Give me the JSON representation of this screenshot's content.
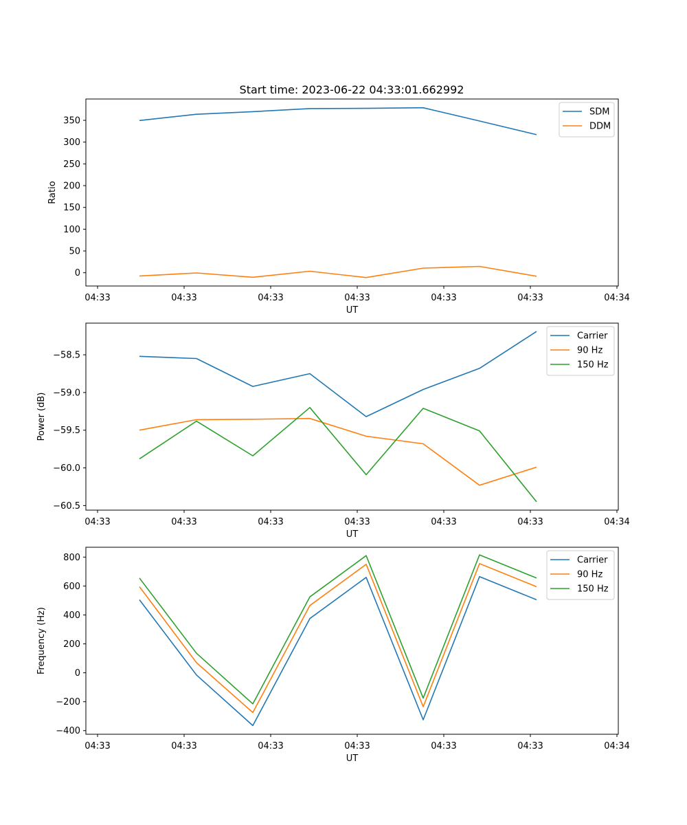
{
  "figure": {
    "title": "Start time: 2023-06-22 04:33:01.662992"
  },
  "colors": {
    "blue": "#1f77b4",
    "orange": "#ff7f0e",
    "green": "#2ca02c"
  },
  "chart_data": [
    {
      "type": "line",
      "title": "Start time: 2023-06-22 04:33:01.662992",
      "xlabel": "UT",
      "ylabel": "Ratio",
      "x_tick_labels": [
        "04:33",
        "04:33",
        "04:33",
        "04:33",
        "04:33",
        "04:33",
        "04:34"
      ],
      "y_tick_values": [
        0,
        50,
        100,
        150,
        200,
        250,
        300,
        350
      ],
      "y_tick_labels": [
        "0",
        "50",
        "100",
        "150",
        "200",
        "250",
        "300",
        "350"
      ],
      "ylim": [
        -30.5,
        399
      ],
      "legend_position": "top-right",
      "series": [
        {
          "name": "SDM",
          "color": "#1f77b4",
          "values": [
            349.5,
            364,
            370,
            377,
            377.5,
            379,
            348.5,
            317
          ]
        },
        {
          "name": "DDM",
          "color": "#ff7f0e",
          "values": [
            -7.5,
            -0.5,
            -10.5,
            3.5,
            -11,
            10.5,
            14.5,
            -8
          ]
        }
      ]
    },
    {
      "type": "line",
      "title": "",
      "xlabel": "UT",
      "ylabel": "Power (dB)",
      "x_tick_labels": [
        "04:33",
        "04:33",
        "04:33",
        "04:33",
        "04:33",
        "04:33",
        "04:34"
      ],
      "y_tick_values": [
        -60.5,
        -60.0,
        -59.5,
        -59.0,
        -58.5
      ],
      "y_tick_labels": [
        "−60.5",
        "−60.0",
        "−59.5",
        "−59.0",
        "−58.5"
      ],
      "ylim": [
        -60.56,
        -58.08
      ],
      "legend_position": "top-right",
      "series": [
        {
          "name": "Carrier",
          "color": "#1f77b4",
          "values": [
            -58.52,
            -58.55,
            -58.92,
            -58.75,
            -59.32,
            -58.96,
            -58.68,
            -58.19
          ]
        },
        {
          "name": "90 Hz",
          "color": "#ff7f0e",
          "values": [
            -59.5,
            -59.36,
            -59.355,
            -59.345,
            -59.58,
            -59.68,
            -60.23,
            -59.99
          ]
        },
        {
          "name": "150 Hz",
          "color": "#2ca02c",
          "values": [
            -59.88,
            -59.38,
            -59.84,
            -59.2,
            -60.09,
            -59.21,
            -59.51,
            -60.45
          ]
        }
      ]
    },
    {
      "type": "line",
      "title": "",
      "xlabel": "UT",
      "ylabel": "Frequency (Hz)",
      "x_tick_labels": [
        "04:33",
        "04:33",
        "04:33",
        "04:33",
        "04:33",
        "04:33",
        "04:34"
      ],
      "y_tick_values": [
        -400,
        -200,
        0,
        200,
        400,
        600,
        800
      ],
      "y_tick_labels": [
        "−400",
        "−200",
        "0",
        "200",
        "400",
        "600",
        "800"
      ],
      "ylim": [
        -425,
        868
      ],
      "legend_position": "top-right",
      "series": [
        {
          "name": "Carrier",
          "color": "#1f77b4",
          "values": [
            505,
            -15,
            -365,
            375,
            660,
            -325,
            665,
            505
          ]
        },
        {
          "name": "90 Hz",
          "color": "#ff7f0e",
          "values": [
            595,
            70,
            -275,
            465,
            750,
            -235,
            755,
            595
          ]
        },
        {
          "name": "150 Hz",
          "color": "#2ca02c",
          "values": [
            655,
            135,
            -215,
            525,
            810,
            -175,
            815,
            655
          ]
        }
      ]
    }
  ]
}
